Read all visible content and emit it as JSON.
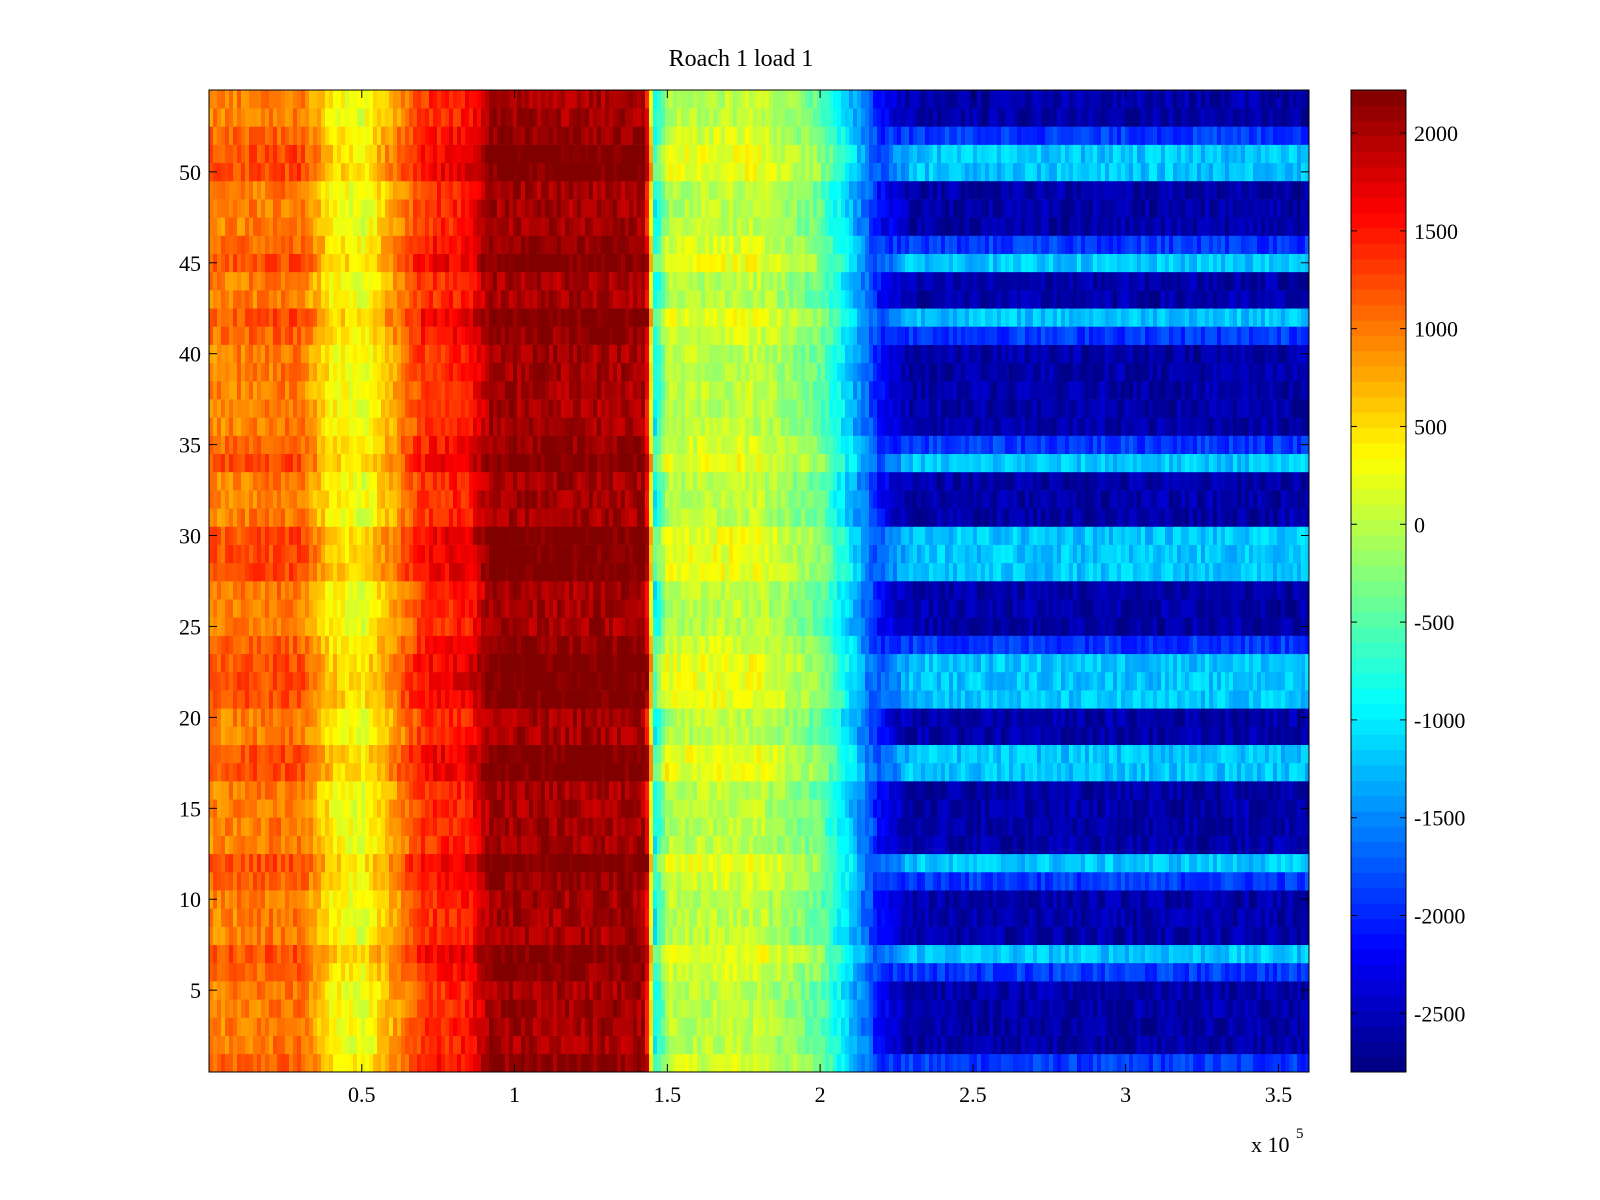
{
  "chart_data": {
    "type": "heatmap",
    "title": "Roach 1 load 1",
    "xlabel": "",
    "ylabel": "",
    "x_exponent_label": "x 10",
    "x_exponent_power": "5",
    "xlim": [
      0,
      360000
    ],
    "ylim": [
      0.5,
      54.5
    ],
    "clim": [
      -2800,
      2220
    ],
    "colormap": "jet",
    "grid": false,
    "n_rows": 54,
    "x_ticks": [
      {
        "value": 50000,
        "label": "0.5"
      },
      {
        "value": 100000,
        "label": "1"
      },
      {
        "value": 150000,
        "label": "1.5"
      },
      {
        "value": 200000,
        "label": "2"
      },
      {
        "value": 250000,
        "label": "2.5"
      },
      {
        "value": 300000,
        "label": "3"
      },
      {
        "value": 350000,
        "label": "3.5"
      }
    ],
    "y_ticks": [
      {
        "value": 5,
        "label": "5"
      },
      {
        "value": 10,
        "label": "10"
      },
      {
        "value": 15,
        "label": "15"
      },
      {
        "value": 20,
        "label": "20"
      },
      {
        "value": 25,
        "label": "25"
      },
      {
        "value": 30,
        "label": "30"
      },
      {
        "value": 35,
        "label": "35"
      },
      {
        "value": 40,
        "label": "40"
      },
      {
        "value": 45,
        "label": "45"
      },
      {
        "value": 50,
        "label": "50"
      }
    ],
    "colorbar_ticks": [
      {
        "value": 2000,
        "label": "2000"
      },
      {
        "value": 1500,
        "label": "1500"
      },
      {
        "value": 1000,
        "label": "1000"
      },
      {
        "value": 500,
        "label": "500"
      },
      {
        "value": 0,
        "label": "0"
      },
      {
        "value": -500,
        "label": "-500"
      },
      {
        "value": -1000,
        "label": "-1000"
      },
      {
        "value": -1500,
        "label": "-1500"
      },
      {
        "value": -2000,
        "label": "-2000"
      },
      {
        "value": -2500,
        "label": "-2500"
      }
    ],
    "column_profile": [
      {
        "x": 0,
        "value": 1050
      },
      {
        "x": 30000,
        "value": 1150
      },
      {
        "x": 40000,
        "value": 500
      },
      {
        "x": 50000,
        "value": 300
      },
      {
        "x": 60000,
        "value": 850
      },
      {
        "x": 70000,
        "value": 1450
      },
      {
        "x": 85000,
        "value": 1600
      },
      {
        "x": 92000,
        "value": 2150
      },
      {
        "x": 143000,
        "value": 2150
      },
      {
        "x": 146000,
        "value": -750
      },
      {
        "x": 150000,
        "value": 100
      },
      {
        "x": 180000,
        "value": 150
      },
      {
        "x": 200000,
        "value": -300
      },
      {
        "x": 210000,
        "value": -1100
      },
      {
        "x": 220000,
        "value": -2000
      },
      {
        "x": 360000,
        "value": -2000
      }
    ],
    "row_pattern_right_region": {
      "dark_rows": [
        2,
        3,
        4,
        5,
        8,
        9,
        10,
        13,
        14,
        15,
        16,
        19,
        20,
        25,
        26,
        27,
        31,
        32,
        33,
        36,
        37,
        38,
        39,
        40,
        43,
        44,
        47,
        48,
        49,
        53,
        54
      ],
      "light_rows": [
        7,
        12,
        17,
        18,
        21,
        22,
        23,
        28,
        29,
        30,
        34,
        42,
        45,
        50,
        51
      ],
      "dark_value": -2600,
      "light_value": -1200,
      "mid_value": -1900
    }
  }
}
